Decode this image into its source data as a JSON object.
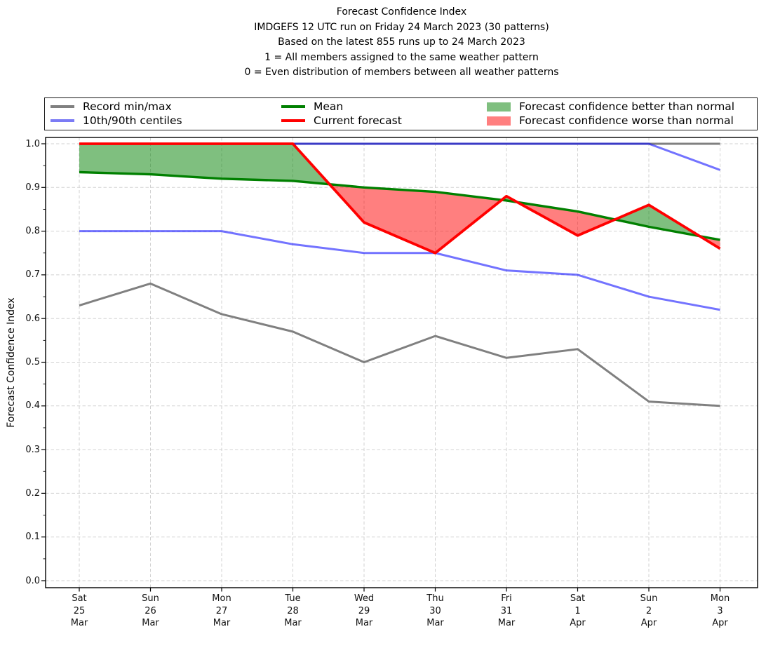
{
  "title": {
    "lines": [
      "Forecast Confidence Index",
      "IMDGEFS 12 UTC run on Friday 24 March 2023 (30 patterns)",
      "Based on the latest 855 runs up to 24 March 2023",
      "1 = All members assigned to the same weather pattern",
      "0 = Even distribution of members between all weather patterns"
    ]
  },
  "legend": {
    "items": [
      {
        "name": "record-minmax",
        "label": "Record min/max",
        "swatch": "line",
        "color": "#808080"
      },
      {
        "name": "centiles",
        "label": "10th/90th centiles",
        "swatch": "line",
        "color": "#7b7bf5"
      },
      {
        "name": "mean",
        "label": "Mean",
        "swatch": "line",
        "color": "#008000"
      },
      {
        "name": "current-forecast",
        "label": "Current forecast",
        "swatch": "line",
        "color": "#ff0000"
      },
      {
        "name": "better-than-normal",
        "label": "Forecast confidence better than normal",
        "swatch": "patch",
        "color": "#7fbf7f"
      },
      {
        "name": "worse-than-normal",
        "label": "Forecast confidence worse than normal",
        "swatch": "patch",
        "color": "#ff7f7f"
      }
    ]
  },
  "chart_data": {
    "type": "line",
    "title": "Forecast Confidence Index",
    "xlabel": "",
    "ylabel": "Forecast Confidence Index",
    "ylim": [
      0.0,
      1.0
    ],
    "grid": true,
    "legend_position": "top",
    "yticks": [
      0.0,
      0.1,
      0.2,
      0.3,
      0.4,
      0.5,
      0.6,
      0.7,
      0.8,
      0.9,
      1.0
    ],
    "categories": [
      {
        "day": "Sat",
        "date": "25",
        "month": "Mar"
      },
      {
        "day": "Sun",
        "date": "26",
        "month": "Mar"
      },
      {
        "day": "Mon",
        "date": "27",
        "month": "Mar"
      },
      {
        "day": "Tue",
        "date": "28",
        "month": "Mar"
      },
      {
        "day": "Wed",
        "date": "29",
        "month": "Mar"
      },
      {
        "day": "Thu",
        "date": "30",
        "month": "Mar"
      },
      {
        "day": "Fri",
        "date": "31",
        "month": "Mar"
      },
      {
        "day": "Sat",
        "date": "1",
        "month": "Apr"
      },
      {
        "day": "Sun",
        "date": "2",
        "month": "Apr"
      },
      {
        "day": "Mon",
        "date": "3",
        "month": "Apr"
      }
    ],
    "series": [
      {
        "name": "record_max",
        "label": "Record max",
        "color": "#808080",
        "opacity": 1,
        "width": 3,
        "values": [
          1.0,
          1.0,
          1.0,
          1.0,
          1.0,
          1.0,
          1.0,
          1.0,
          1.0,
          1.0
        ]
      },
      {
        "name": "record_min",
        "label": "Record min",
        "color": "#808080",
        "opacity": 1,
        "width": 3,
        "values": [
          0.63,
          0.68,
          0.61,
          0.57,
          0.5,
          0.56,
          0.51,
          0.53,
          0.41,
          0.4
        ]
      },
      {
        "name": "centile_90",
        "label": "90th centile",
        "color": "#0000ff",
        "opacity": 0.55,
        "width": 3,
        "values": [
          1.0,
          1.0,
          1.0,
          1.0,
          1.0,
          1.0,
          1.0,
          1.0,
          1.0,
          0.94
        ]
      },
      {
        "name": "centile_10",
        "label": "10th centile",
        "color": "#0000ff",
        "opacity": 0.55,
        "width": 3,
        "values": [
          0.8,
          0.8,
          0.8,
          0.77,
          0.75,
          0.75,
          0.71,
          0.7,
          0.65,
          0.62
        ]
      },
      {
        "name": "mean",
        "label": "Mean",
        "color": "#008000",
        "opacity": 1,
        "width": 3.4,
        "values": [
          0.935,
          0.93,
          0.92,
          0.915,
          0.9,
          0.89,
          0.87,
          0.845,
          0.81,
          0.78
        ]
      },
      {
        "name": "current",
        "label": "Current forecast",
        "color": "#ff0000",
        "opacity": 1,
        "width": 3.8,
        "values": [
          1.0,
          1.0,
          1.0,
          1.0,
          0.82,
          0.75,
          0.88,
          0.79,
          0.86,
          0.76
        ]
      }
    ],
    "fills": {
      "between": [
        "current",
        "mean"
      ],
      "better": {
        "label": "Forecast confidence better than normal",
        "color": "#008000",
        "opacity": 0.5
      },
      "worse": {
        "label": "Forecast confidence worse than normal",
        "color": "#ff0000",
        "opacity": 0.5
      }
    }
  }
}
